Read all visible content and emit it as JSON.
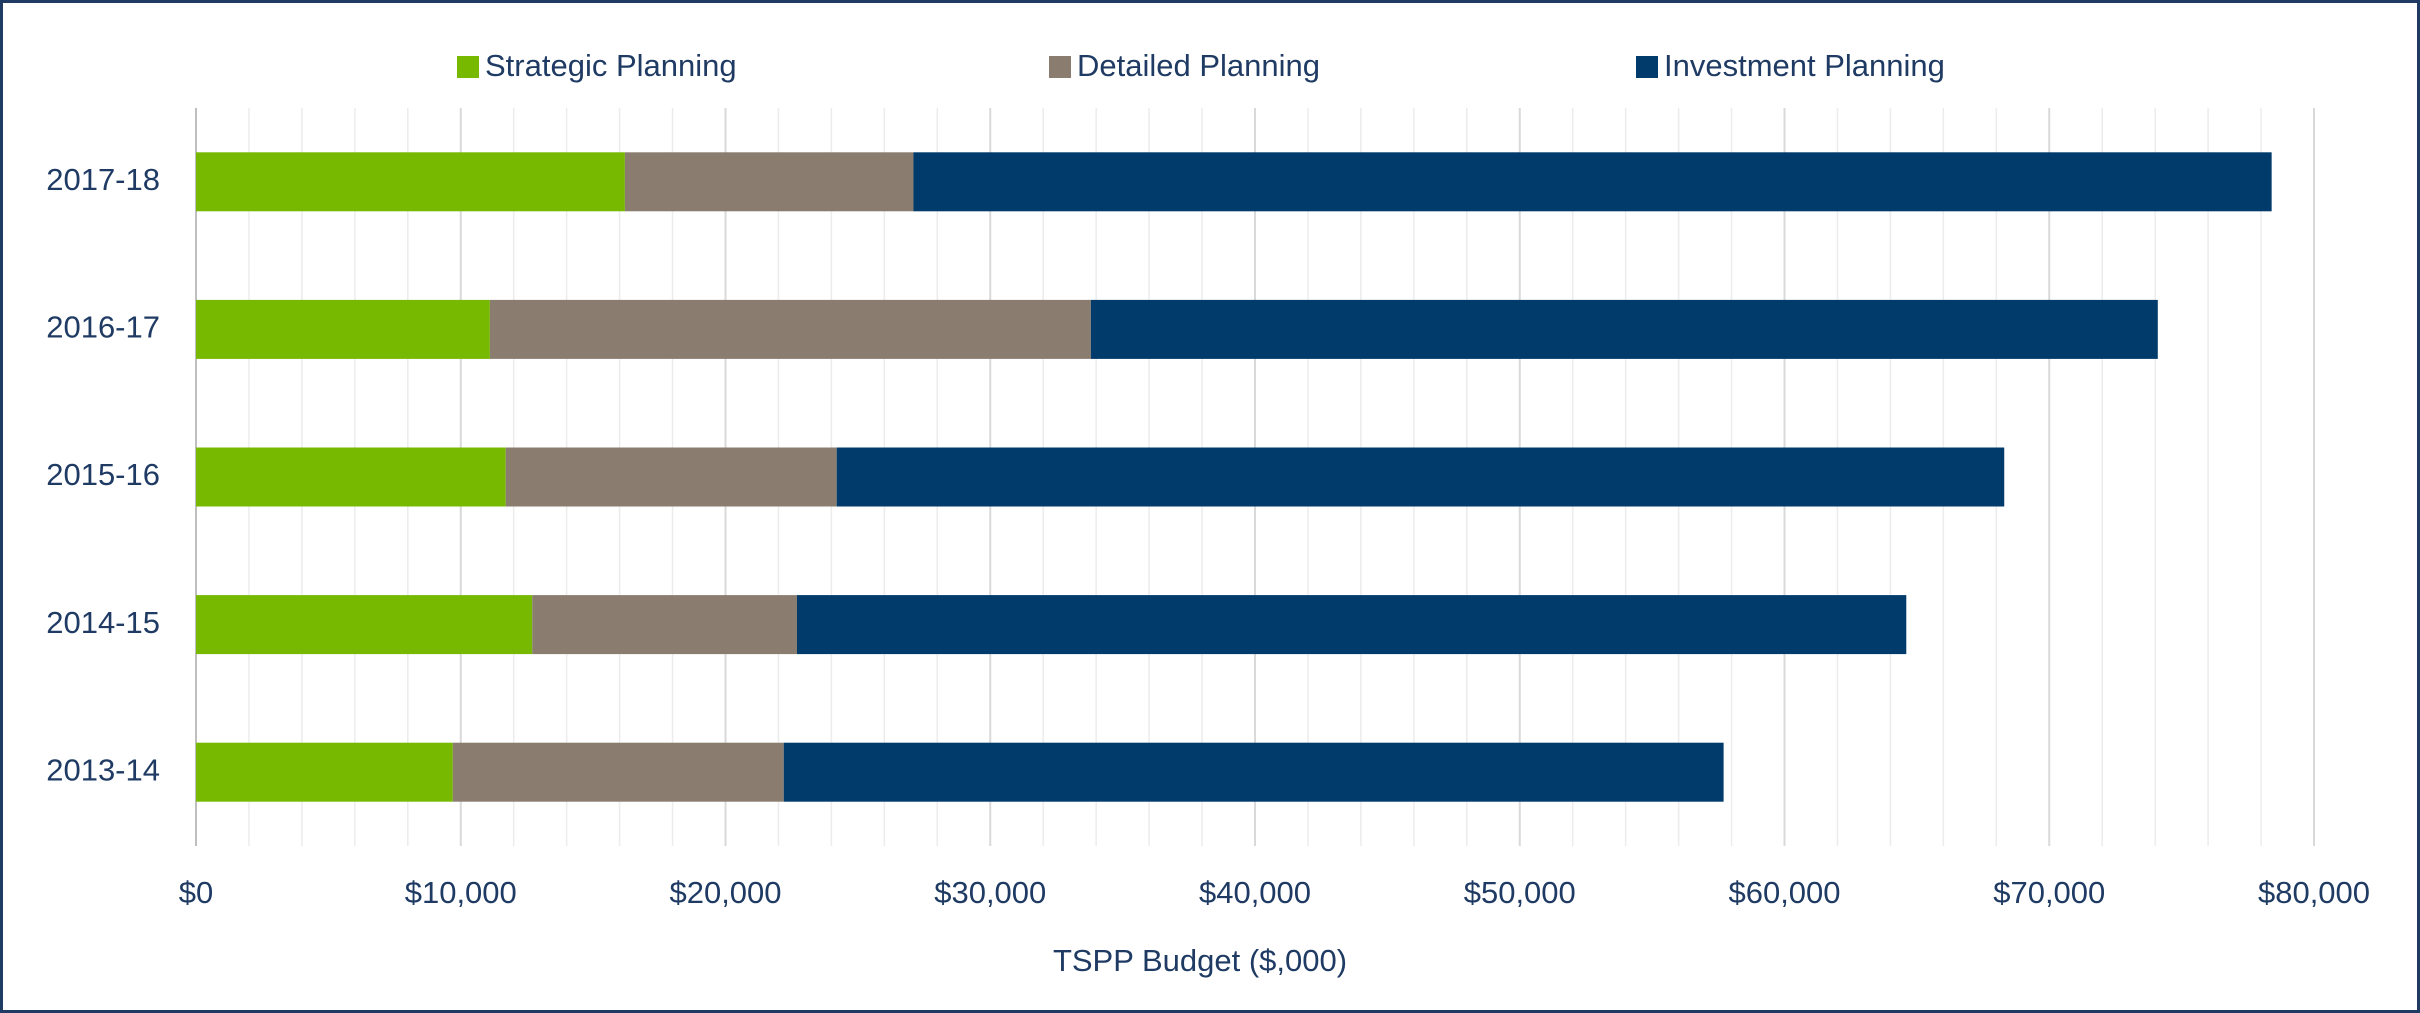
{
  "chart_data": {
    "type": "stacked-bar-horizontal",
    "categories": [
      "2017-18",
      "2016-17",
      "2015-16",
      "2014-15",
      "2013-14"
    ],
    "series": [
      {
        "name": "Strategic Planning",
        "color": "#77b800",
        "values": [
          16200,
          11100,
          11700,
          12700,
          9700
        ]
      },
      {
        "name": "Detailed Planning",
        "color": "#8a7d70",
        "values": [
          10900,
          22700,
          12500,
          10000,
          12500
        ]
      },
      {
        "name": "Investment Planning",
        "color": "#003b6b",
        "values": [
          51300,
          40300,
          44100,
          41900,
          35500
        ]
      }
    ],
    "xlabel": "TSPP Budget ($,000)",
    "xlim": [
      0,
      80000
    ],
    "xticks": [
      {
        "value": 0,
        "label": "$0"
      },
      {
        "value": 10000,
        "label": "$10,000"
      },
      {
        "value": 20000,
        "label": "$20,000"
      },
      {
        "value": 30000,
        "label": "$30,000"
      },
      {
        "value": 40000,
        "label": "$40,000"
      },
      {
        "value": 50000,
        "label": "$50,000"
      },
      {
        "value": 60000,
        "label": "$60,000"
      },
      {
        "value": 70000,
        "label": "$70,000"
      },
      {
        "value": 80000,
        "label": "$80,000"
      }
    ],
    "grid": true,
    "legend": "top"
  }
}
